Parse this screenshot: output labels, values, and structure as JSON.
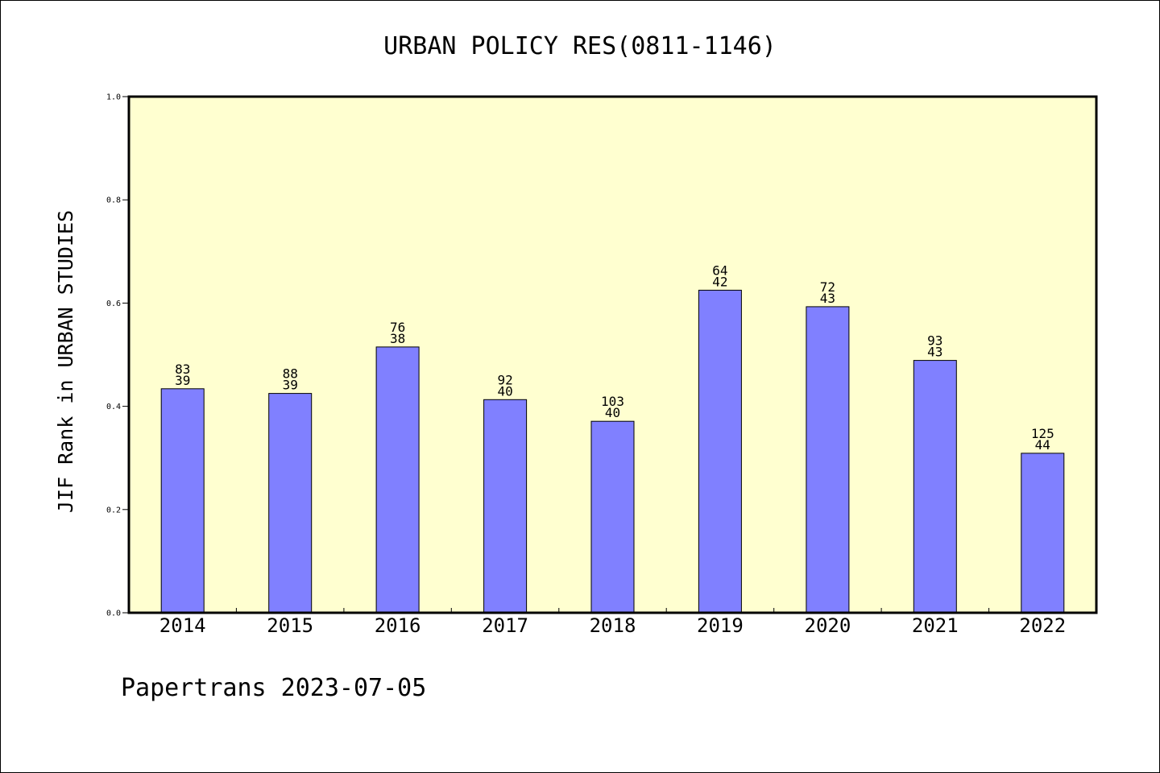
{
  "chart_data": {
    "type": "bar",
    "title": "URBAN POLICY RES(0811-1146)",
    "ylabel": "JIF Rank in URBAN STUDIES",
    "xlabel": "",
    "categories": [
      "2014",
      "2015",
      "2016",
      "2017",
      "2018",
      "2019",
      "2020",
      "2021",
      "2022"
    ],
    "values": [
      0.434,
      0.425,
      0.515,
      0.413,
      0.371,
      0.625,
      0.593,
      0.489,
      0.309
    ],
    "rank_labels": [
      "83",
      "88",
      "76",
      "92",
      "103",
      "64",
      "72",
      "93",
      "125"
    ],
    "position_labels": [
      "39",
      "39",
      "38",
      "40",
      "40",
      "42",
      "43",
      "43",
      "44"
    ],
    "ylim": [
      0,
      1.0
    ],
    "yticks": [
      "0.0",
      "0.2",
      "0.4",
      "0.6",
      "0.8",
      "1.0"
    ],
    "grid": false,
    "legend": "none",
    "colors": {
      "bar_fill": "#8080ff",
      "bar_stroke": "#000000",
      "plot_background": "#ffffd0"
    }
  },
  "footer": {
    "text": "Papertrans 2023-07-05"
  }
}
